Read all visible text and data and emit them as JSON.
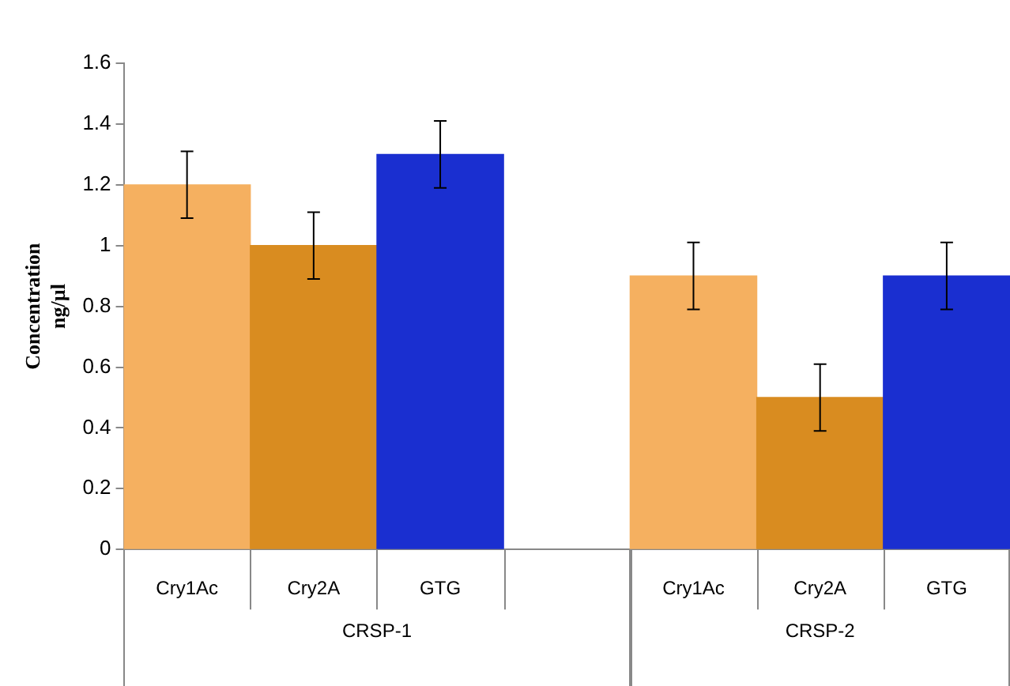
{
  "chart_data": {
    "type": "bar",
    "ylabel": "Concentration ng/µl",
    "categories": [
      "Cry1Ac",
      "Cry2A",
      "GTG",
      null,
      "Cry1Ac",
      "Cry2A",
      "GTG"
    ],
    "values": [
      1.2,
      1.0,
      1.3,
      null,
      0.9,
      0.5,
      0.9
    ],
    "colors": [
      "#f5b060",
      "#d98c20",
      "#1a2fd0",
      "#ffffff",
      "#f5b060",
      "#d98c20",
      "#1a2fd0"
    ],
    "errors": [
      0.11,
      0.11,
      0.11,
      null,
      0.11,
      0.11,
      0.11
    ],
    "ylim": [
      0,
      1.6
    ],
    "yticks": [
      0,
      0.2,
      0.4,
      0.6,
      0.8,
      1,
      1.2,
      1.4,
      1.6
    ],
    "annotations": [
      "CRSP-1",
      "CRSP-2"
    ]
  }
}
